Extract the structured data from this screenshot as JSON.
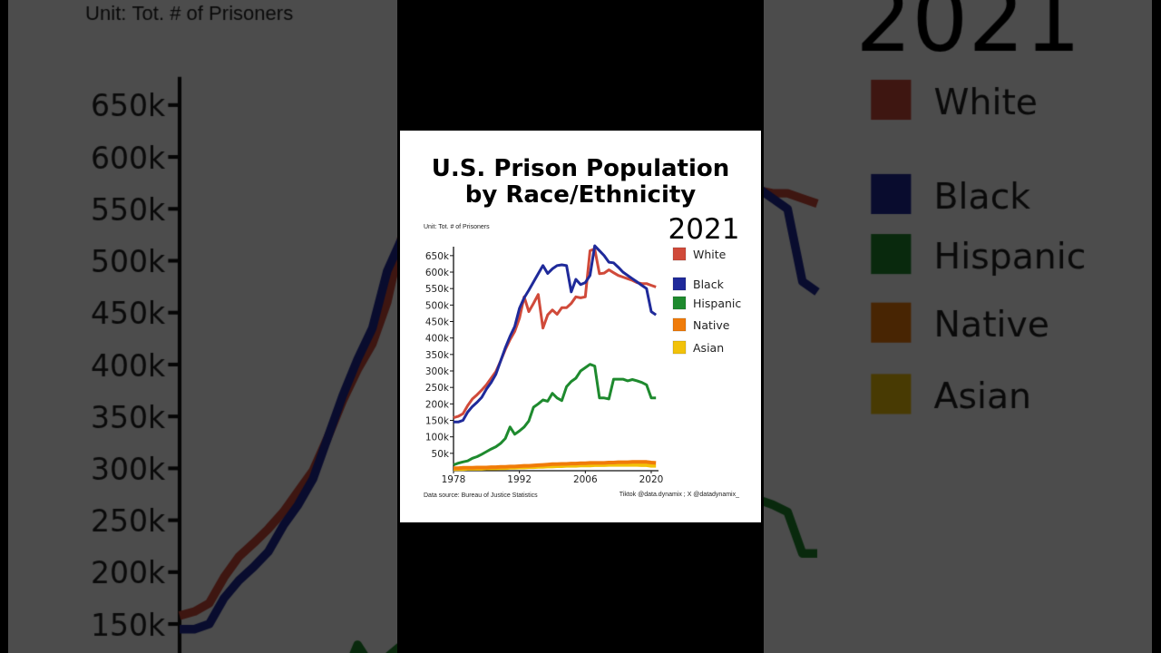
{
  "chart_data": {
    "type": "line",
    "title": "U.S. Prison Population by Race/Ethnicity",
    "title_lines": [
      "U.S. Prison Population",
      "by Race/Ethnicity"
    ],
    "unit_label": "Unit: Tot. # of Prisoners",
    "current_year": "2021",
    "x": [
      1978,
      1979,
      1980,
      1981,
      1982,
      1983,
      1984,
      1985,
      1986,
      1987,
      1988,
      1989,
      1990,
      1991,
      1992,
      1993,
      1994,
      1995,
      1996,
      1997,
      1998,
      1999,
      2000,
      2001,
      2002,
      2003,
      2004,
      2005,
      2006,
      2007,
      2008,
      2009,
      2010,
      2011,
      2012,
      2013,
      2014,
      2015,
      2016,
      2017,
      2018,
      2019,
      2020,
      2021
    ],
    "x_ticks": [
      "1978",
      "1992",
      "2006",
      "2020"
    ],
    "y_ticks": [
      "650k",
      "600k",
      "550k",
      "500k",
      "450k",
      "400k",
      "350k",
      "300k",
      "250k",
      "200k",
      "150k",
      "100k",
      "50k"
    ],
    "y_unit": "thousands",
    "ylim": [
      0,
      680
    ],
    "grid": false,
    "legend_position": "right",
    "series": [
      {
        "name": "White",
        "color": "#d04a3a",
        "values": [
          158,
          162,
          170,
          195,
          215,
          228,
          242,
          258,
          278,
          298,
          330,
          365,
          395,
          420,
          460,
          525,
          480,
          505,
          532,
          430,
          470,
          485,
          472,
          492,
          492,
          505,
          525,
          522,
          525,
          665,
          670,
          595,
          597,
          607,
          598,
          590,
          585,
          580,
          575,
          568,
          565,
          565,
          560,
          555
        ]
      },
      {
        "name": "Black",
        "color": "#1f2a9a",
        "values": [
          145,
          145,
          150,
          175,
          192,
          205,
          220,
          245,
          265,
          290,
          330,
          370,
          405,
          435,
          490,
          522,
          545,
          570,
          595,
          620,
          596,
          610,
          620,
          622,
          620,
          540,
          578,
          562,
          568,
          590,
          680,
          665,
          650,
          630,
          628,
          615,
          600,
          590,
          580,
          570,
          560,
          550,
          480,
          470
        ]
      },
      {
        "name": "Hispanic",
        "color": "#1e8a2e",
        "values": [
          15,
          20,
          24,
          27,
          35,
          40,
          47,
          55,
          63,
          70,
          80,
          95,
          130,
          108,
          118,
          130,
          148,
          190,
          200,
          212,
          208,
          232,
          218,
          210,
          252,
          268,
          278,
          300,
          310,
          320,
          315,
          218,
          218,
          215,
          275,
          275,
          275,
          270,
          274,
          270,
          265,
          258,
          218,
          218
        ]
      },
      {
        "name": "Native",
        "color": "#f07c0a",
        "values": [
          5,
          5,
          6,
          6,
          6,
          7,
          7,
          7,
          8,
          8,
          9,
          9,
          10,
          10,
          11,
          12,
          12,
          13,
          14,
          15,
          16,
          17,
          17,
          18,
          18,
          19,
          19,
          20,
          20,
          21,
          21,
          21,
          21,
          22,
          22,
          23,
          23,
          23,
          24,
          24,
          24,
          24,
          22,
          21
        ]
      },
      {
        "name": "Asian",
        "color": "#f2c20a",
        "values": [
          2,
          2,
          2,
          3,
          3,
          3,
          3,
          4,
          4,
          4,
          5,
          5,
          6,
          6,
          7,
          7,
          8,
          8,
          9,
          9,
          10,
          10,
          11,
          11,
          12,
          12,
          12,
          13,
          13,
          13,
          14,
          14,
          14,
          15,
          15,
          15,
          15,
          15,
          15,
          15,
          14,
          14,
          12,
          12
        ]
      }
    ],
    "source": "Data source: Bureau of Justice Statistics",
    "credit": "Tiktok @data.dynamix ; X @datadynamix_"
  }
}
